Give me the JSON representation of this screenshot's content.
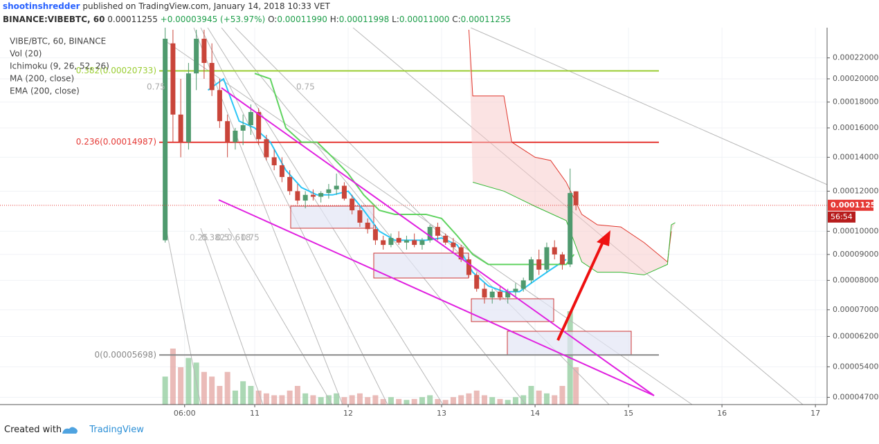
{
  "header": {
    "author": "shootinshredder",
    "published": "published on TradingView.com, January 14, 2018 10:33 VET",
    "symbol": "BINANCE:VIBEBTC, 60",
    "price": "0.00011255",
    "change": "+0.00003945 (+53.97%)",
    "ohlc": [
      {
        "label": "O:",
        "value": "0.00011990"
      },
      {
        "label": "H:",
        "value": "0.00011998"
      },
      {
        "label": "L:",
        "value": "0.00011000"
      },
      {
        "label": "C:",
        "value": "0.00011255"
      }
    ]
  },
  "footer": {
    "created": "Created with",
    "brand": "TradingView"
  },
  "chart_data": {
    "type": "candlestick",
    "log": true,
    "grid": true,
    "legend": [
      "VIBE/BTC, 60, BINANCE",
      "Vol (20)",
      "Ichimoku (9, 26, 52, 26)",
      "MA (200, close)",
      "EMA (200, close)"
    ],
    "up_color": "#4f9a6e",
    "down_color": "#c9453a",
    "x": [
      1,
      3,
      5,
      7,
      9,
      11,
      13,
      15,
      17,
      19,
      21,
      23,
      25,
      27,
      29,
      31,
      33,
      35,
      37,
      39,
      41,
      43,
      45,
      47,
      49,
      51,
      53,
      55,
      57,
      59,
      61,
      63,
      65,
      67,
      69,
      71,
      73,
      75,
      77,
      79,
      81,
      83,
      85,
      87,
      89,
      91,
      93,
      95,
      97,
      99,
      101,
      103,
      105,
      106.5
    ],
    "open": [
      9.6e-05,
      0.000235,
      0.00017,
      0.00015,
      0.000205,
      0.00024,
      0.000215,
      0.00019,
      0.000165,
      0.00015,
      0.000158,
      0.000162,
      0.000172,
      0.000152,
      0.00014,
      0.000135,
      0.000128,
      0.00012,
      0.000115,
      0.000118,
      0.000117,
      0.000119,
      0.000121,
      0.000123,
      0.000116,
      0.00011,
      0.000104,
      0.000101,
      9.6e-05,
      9.4e-05,
      9.7e-05,
      9.5e-05,
      9.6e-05,
      9.4e-05,
      9.6e-05,
      0.000102,
      9.8e-05,
      9.5e-05,
      9.3e-05,
      8.8e-05,
      8.2e-05,
      7.7e-05,
      7.4e-05,
      7.6e-05,
      7.4e-05,
      7.6e-05,
      7.7e-05,
      8e-05,
      8.8e-05,
      8.4e-05,
      9.3e-05,
      9e-05,
      8.6e-05,
      0.0001199
    ],
    "high": [
      0.000255,
      0.00025,
      0.0002,
      0.000215,
      0.00025,
      0.00025,
      0.000235,
      0.0002,
      0.00017,
      0.00016,
      0.00017,
      0.000178,
      0.000175,
      0.000155,
      0.000145,
      0.00014,
      0.000132,
      0.000124,
      0.00012,
      0.000121,
      0.00012,
      0.000124,
      0.00013,
      0.000125,
      0.000118,
      0.000112,
      0.000106,
      0.000103,
      9.8e-05,
      9.9e-05,
      0.0001,
      9.8e-05,
      9.9e-05,
      9.7e-05,
      0.000103,
      0.000104,
      9.9e-05,
      9.7e-05,
      9.4e-05,
      8.9e-05,
      8.3e-05,
      7.9e-05,
      7.7e-05,
      7.8e-05,
      7.7e-05,
      7.9e-05,
      8.1e-05,
      8.9e-05,
      9.2e-05,
      9.5e-05,
      9.6e-05,
      9.1e-05,
      0.000133,
      0.00011998
    ],
    "low": [
      9.5e-05,
      0.00015,
      0.00014,
      0.000145,
      0.00019,
      0.0002,
      0.000185,
      0.00016,
      0.00014,
      0.000145,
      0.000148,
      0.000155,
      0.000148,
      0.000138,
      0.000132,
      0.000125,
      0.000118,
      0.000113,
      0.000111,
      0.000115,
      0.000114,
      0.000116,
      0.000118,
      0.000115,
      0.000108,
      0.000102,
      9.9e-05,
      9.4e-05,
      9.2e-05,
      9.3e-05,
      9.4e-05,
      9.2e-05,
      9.3e-05,
      9.2e-05,
      9.5e-05,
      9.6e-05,
      9.4e-05,
      9.1e-05,
      8.7e-05,
      8.1e-05,
      7.6e-05,
      7.2e-05,
      7.2e-05,
      7.3e-05,
      7.2e-05,
      7.4e-05,
      7.6e-05,
      7.9e-05,
      8.2e-05,
      8.3e-05,
      8.8e-05,
      8.4e-05,
      8.5e-05,
      0.00011
    ],
    "close": [
      0.00024,
      0.00017,
      0.00015,
      0.000205,
      0.00024,
      0.000215,
      0.00019,
      0.000165,
      0.00015,
      0.000158,
      0.000162,
      0.000172,
      0.000152,
      0.00014,
      0.000135,
      0.000128,
      0.00012,
      0.000115,
      0.000118,
      0.000117,
      0.000119,
      0.000121,
      0.000123,
      0.000116,
      0.00011,
      0.000104,
      0.000101,
      9.6e-05,
      9.4e-05,
      9.7e-05,
      9.5e-05,
      9.6e-05,
      9.4e-05,
      9.6e-05,
      0.000102,
      9.8e-05,
      9.5e-05,
      9.3e-05,
      8.8e-05,
      8.2e-05,
      7.7e-05,
      7.4e-05,
      7.6e-05,
      7.4e-05,
      7.6e-05,
      7.7e-05,
      8e-05,
      8.8e-05,
      8.4e-05,
      9.3e-05,
      9e-05,
      8.6e-05,
      0.000119,
      0.00011255
    ],
    "volume": {
      "up_color": "#8fcb9b",
      "down_color": "#e3a4a0",
      "values": [
        30,
        60,
        40,
        50,
        45,
        35,
        30,
        20,
        35,
        15,
        25,
        20,
        15,
        12,
        10,
        10,
        15,
        20,
        12,
        10,
        8,
        10,
        12,
        8,
        10,
        12,
        8,
        10,
        6,
        8,
        6,
        5,
        6,
        8,
        10,
        6,
        5,
        8,
        10,
        12,
        15,
        10,
        8,
        6,
        5,
        8,
        10,
        20,
        15,
        12,
        10,
        20,
        100,
        40
      ]
    },
    "overlays": [
      {
        "color": "#29c5f6",
        "x": [
          12,
          16,
          20,
          24,
          28,
          32,
          36,
          40,
          44,
          48,
          52,
          56,
          60,
          64,
          68,
          72,
          76,
          80,
          84,
          88,
          92,
          96,
          100,
          104
        ],
        "values": [
          0.00019,
          0.0002,
          0.000165,
          0.00016,
          0.00015,
          0.000132,
          0.000122,
          0.000118,
          0.000118,
          0.00012,
          0.00011,
          0.0001,
          9.6e-05,
          9.6e-05,
          9.6e-05,
          9.7e-05,
          9.4e-05,
          8.3e-05,
          7.8e-05,
          7.6e-05,
          7.6e-05,
          8e-05,
          8.4e-05,
          8.8e-05
        ]
      },
      {
        "color": "#5fd35f",
        "x": [
          24,
          28,
          32,
          36,
          40,
          44,
          48,
          52,
          56,
          60,
          64,
          68,
          72,
          76,
          80,
          84,
          88,
          92,
          96,
          100,
          104,
          106
        ],
        "values": [
          0.000205,
          0.0002,
          0.00016,
          0.00015,
          0.00015,
          0.00014,
          0.00013,
          0.000118,
          0.00011,
          0.000108,
          0.000108,
          0.000108,
          0.000106,
          9.8e-05,
          9e-05,
          8.6e-05,
          8.6e-05,
          8.6e-05,
          8.6e-05,
          8.6e-05,
          8.6e-05,
          9e-05
        ]
      },
      {
        "color": "#e0352b",
        "x": [
          79,
          80,
          88,
          90,
          96,
          100,
          104,
          108,
          112,
          118,
          124,
          130,
          131
        ],
        "values": [
          0.00025,
          0.000185,
          0.000185,
          0.00015,
          0.00014,
          0.000138,
          0.000125,
          0.000108,
          0.000103,
          0.000102,
          9.5e-05,
          8.7e-05,
          0.0001
        ]
      },
      {
        "color": "#33b833",
        "x": [
          80,
          88,
          96,
          104,
          108,
          112,
          118,
          124,
          130,
          131,
          132
        ],
        "values": [
          0.000125,
          0.00012,
          0.000112,
          0.000105,
          8.7e-05,
          8.3e-05,
          8.3e-05,
          8.2e-05,
          8.6e-05,
          0.000103,
          0.000104
        ]
      }
    ],
    "levels": [
      {
        "label": "0.382(0.00020733)",
        "value": 0.00020733,
        "color": "#9acd32"
      },
      {
        "label": "0.236(0.00014987)",
        "value": 0.00014987,
        "color": "#e53935"
      },
      {
        "label": "0(0.00005698)",
        "value": 5.698e-05,
        "color": "#888888"
      }
    ],
    "annotations": [
      "0.75",
      "0.75",
      "0.25",
      "0.382",
      "0.5",
      "0.618",
      "0.75"
    ],
    "last_price": 0.00011255,
    "last_color": "#e53935",
    "countdown": "56:54",
    "xlim": [
      -41.42,
      171.0
    ],
    "xticks": [
      {
        "value": 6,
        "label": "06:00"
      },
      {
        "value": 24,
        "label": "11"
      },
      {
        "value": 48,
        "label": "12"
      },
      {
        "value": 72,
        "label": "13"
      },
      {
        "value": 96,
        "label": "14"
      },
      {
        "value": 120,
        "label": "15"
      },
      {
        "value": 144,
        "label": "16"
      },
      {
        "value": 168,
        "label": "17"
      }
    ],
    "ylim": [
      4.548e-05,
      0.0002508
    ],
    "yticks": [
      {
        "value": 0.00022,
        "label": "0.00022000"
      },
      {
        "value": 0.0002,
        "label": "0.00020000"
      },
      {
        "value": 0.00018,
        "label": "0.00018000"
      },
      {
        "value": 0.00016,
        "label": "0.00016000"
      },
      {
        "value": 0.00014,
        "label": "0.00014000"
      },
      {
        "value": 0.00012,
        "label": "0.00012000"
      },
      {
        "value": 0.0001,
        "label": "0.00010000"
      },
      {
        "value": 9e-05,
        "label": "0.00009000"
      },
      {
        "value": 8e-05,
        "label": "0.00008000"
      },
      {
        "value": 7e-05,
        "label": "0.00007000"
      },
      {
        "value": 6.2e-05,
        "label": "0.00006200"
      },
      {
        "value": 5.4e-05,
        "label": "0.00005400"
      },
      {
        "value": 4.7e-05,
        "label": "0.00004700"
      }
    ]
  }
}
